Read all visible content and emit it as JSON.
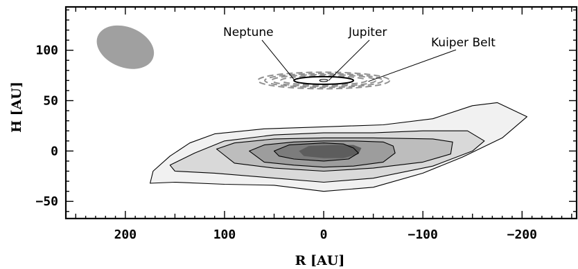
{
  "chart_data": {
    "type": "heatmap",
    "title": "",
    "xlabel": "R [AU]",
    "ylabel": "H [AU]",
    "xlim": [
      260,
      -255
    ],
    "ylim": [
      -67,
      143
    ],
    "x_reversed": true,
    "grid": false,
    "xticks": [
      {
        "value": 200,
        "label": "200"
      },
      {
        "value": 100,
        "label": "100"
      },
      {
        "value": 0,
        "label": "0"
      },
      {
        "value": -100,
        "label": "−100"
      },
      {
        "value": -200,
        "label": "−200"
      }
    ],
    "yticks": [
      {
        "value": 100,
        "label": "100"
      },
      {
        "value": 50,
        "label": "50"
      },
      {
        "value": 0,
        "label": "0"
      },
      {
        "value": -50,
        "label": "−50"
      }
    ],
    "contours": [
      {
        "level": 1,
        "points": [
          [
            175,
            -32
          ],
          [
            172,
            -20
          ],
          [
            155,
            -5
          ],
          [
            135,
            8
          ],
          [
            110,
            17
          ],
          [
            60,
            22
          ],
          [
            0,
            24
          ],
          [
            -60,
            26
          ],
          [
            -110,
            32
          ],
          [
            -150,
            45
          ],
          [
            -175,
            48
          ],
          [
            -205,
            34
          ],
          [
            -180,
            13
          ],
          [
            -140,
            -6
          ],
          [
            -100,
            -22
          ],
          [
            -50,
            -36
          ],
          [
            0,
            -40
          ],
          [
            50,
            -34
          ],
          [
            100,
            -33
          ],
          [
            150,
            -31
          ],
          [
            175,
            -32
          ]
        ]
      },
      {
        "level": 2,
        "points": [
          [
            155,
            -14
          ],
          [
            130,
            -2
          ],
          [
            100,
            10
          ],
          [
            50,
            16
          ],
          [
            0,
            18
          ],
          [
            -50,
            18
          ],
          [
            -100,
            20
          ],
          [
            -145,
            20
          ],
          [
            -162,
            10
          ],
          [
            -150,
            0
          ],
          [
            -110,
            -15
          ],
          [
            -50,
            -27
          ],
          [
            0,
            -31
          ],
          [
            60,
            -26
          ],
          [
            110,
            -22
          ],
          [
            150,
            -20
          ],
          [
            155,
            -14
          ]
        ]
      },
      {
        "level": 3,
        "points": [
          [
            108,
            2
          ],
          [
            90,
            8
          ],
          [
            50,
            12
          ],
          [
            0,
            13
          ],
          [
            -50,
            13
          ],
          [
            -110,
            12
          ],
          [
            -130,
            9
          ],
          [
            -128,
            -3
          ],
          [
            -100,
            -11
          ],
          [
            -50,
            -17
          ],
          [
            0,
            -20
          ],
          [
            50,
            -17
          ],
          [
            90,
            -12
          ],
          [
            108,
            2
          ]
        ]
      },
      {
        "level": 4,
        "points": [
          [
            75,
            0
          ],
          [
            60,
            6
          ],
          [
            30,
            9
          ],
          [
            0,
            10
          ],
          [
            -30,
            10
          ],
          [
            -60,
            9
          ],
          [
            -70,
            5
          ],
          [
            -72,
            -2
          ],
          [
            -60,
            -11
          ],
          [
            -30,
            -15
          ],
          [
            0,
            -16
          ],
          [
            30,
            -14
          ],
          [
            60,
            -11
          ],
          [
            75,
            0
          ]
        ]
      },
      {
        "level": 5,
        "points": [
          [
            50,
            0
          ],
          [
            35,
            6
          ],
          [
            0,
            8
          ],
          [
            -20,
            7
          ],
          [
            -30,
            3
          ],
          [
            -35,
            -2
          ],
          [
            -25,
            -8
          ],
          [
            0,
            -10
          ],
          [
            30,
            -8
          ],
          [
            45,
            -5
          ],
          [
            50,
            0
          ]
        ]
      },
      {
        "level": 6,
        "points": [
          [
            25,
            0
          ],
          [
            15,
            5
          ],
          [
            -10,
            6
          ],
          [
            -30,
            6
          ],
          [
            -38,
            3
          ],
          [
            -35,
            -3
          ],
          [
            -20,
            -7
          ],
          [
            0,
            -7
          ],
          [
            20,
            -5
          ],
          [
            25,
            0
          ]
        ]
      }
    ],
    "beam": {
      "center": [
        200,
        103
      ],
      "width": 60,
      "height": 40,
      "angle_deg": -22
    },
    "annotations": [
      {
        "text": "Neptune",
        "pointer_to": [
          30,
          71
        ]
      },
      {
        "text": "Jupiter",
        "pointer_to": [
          -5,
          70
        ]
      },
      {
        "text": "Kuiper Belt",
        "pointer_to": [
          -45,
          69
        ]
      }
    ],
    "solar_system_inset": {
      "center": [
        0,
        70
      ],
      "orbits": [
        "Jupiter",
        "Neptune"
      ],
      "kuiper_belt_dashed": true
    }
  }
}
